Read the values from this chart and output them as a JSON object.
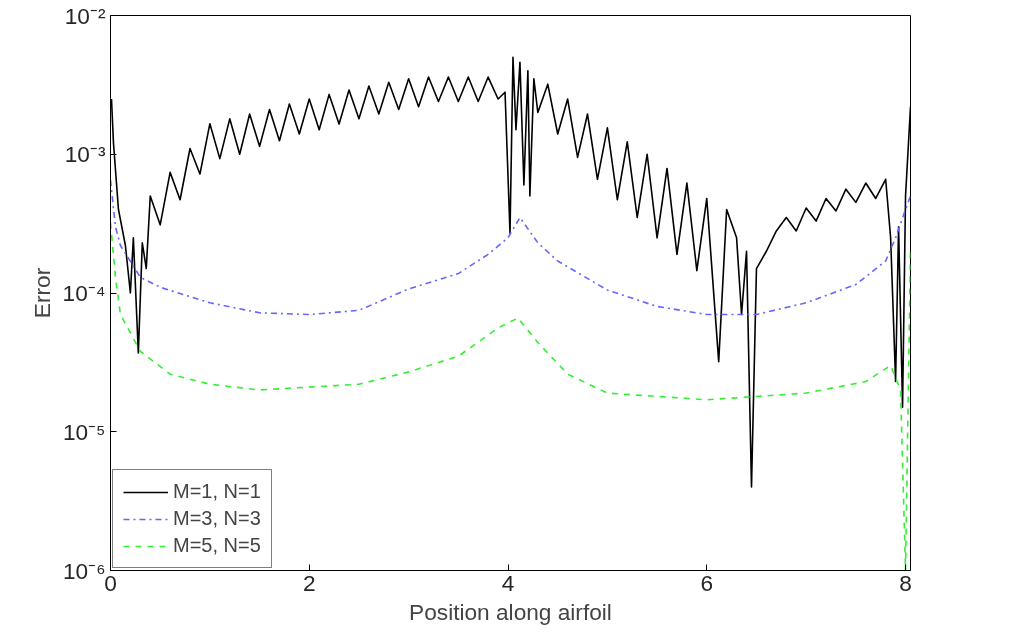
{
  "chart_data": {
    "type": "line",
    "xlabel": "Position along airfoil",
    "ylabel": "Error",
    "log": "y",
    "grid": false,
    "legend": "bottom left",
    "xlim": [
      0,
      8.05
    ],
    "ylim": [
      1e-06,
      0.01
    ],
    "xticks": [
      0,
      2,
      4,
      6,
      8
    ],
    "yticks": [
      {
        "value": 1e-06,
        "label": "10⁻⁶"
      },
      {
        "value": 1e-05,
        "label": "10⁻⁵"
      },
      {
        "value": 0.0001,
        "label": "10⁻⁴"
      },
      {
        "value": 0.001,
        "label": "10⁻³"
      },
      {
        "value": 0.01,
        "label": "10⁻²"
      }
    ],
    "series": [
      {
        "name": "M=1, N=1",
        "color": "#000000",
        "line_style": "solid",
        "x": [
          0.01,
          0.03,
          0.08,
          0.15,
          0.2,
          0.23,
          0.28,
          0.32,
          0.36,
          0.4,
          0.5,
          0.6,
          0.7,
          0.8,
          0.9,
          1.0,
          1.1,
          1.2,
          1.3,
          1.4,
          1.5,
          1.6,
          1.7,
          1.8,
          1.9,
          2.0,
          2.1,
          2.2,
          2.3,
          2.4,
          2.5,
          2.6,
          2.7,
          2.8,
          2.9,
          3.0,
          3.1,
          3.2,
          3.3,
          3.4,
          3.5,
          3.6,
          3.7,
          3.8,
          3.9,
          3.97,
          4.02,
          4.05,
          4.08,
          4.12,
          4.16,
          4.2,
          4.22,
          4.26,
          4.3,
          4.4,
          4.5,
          4.6,
          4.7,
          4.8,
          4.9,
          5.0,
          5.1,
          5.2,
          5.3,
          5.4,
          5.5,
          5.6,
          5.7,
          5.8,
          5.9,
          6.0,
          6.12,
          6.2,
          6.3,
          6.35,
          6.4,
          6.45,
          6.5,
          6.6,
          6.7,
          6.8,
          6.9,
          7.0,
          7.1,
          7.2,
          7.3,
          7.4,
          7.5,
          7.6,
          7.7,
          7.8,
          7.85,
          7.9,
          7.93,
          7.97,
          8.0,
          8.05
        ],
        "values": [
          0.0025,
          0.0012,
          0.0004,
          0.00022,
          0.0001,
          0.00025,
          3.7e-05,
          0.00023,
          0.00015,
          0.0005,
          0.00031,
          0.00074,
          0.00047,
          0.0011,
          0.00072,
          0.00166,
          0.00093,
          0.0018,
          0.001,
          0.00195,
          0.00114,
          0.0021,
          0.00125,
          0.0023,
          0.0014,
          0.0025,
          0.0015,
          0.0027,
          0.00165,
          0.0029,
          0.0018,
          0.0031,
          0.00195,
          0.0033,
          0.0021,
          0.0035,
          0.0022,
          0.0036,
          0.0024,
          0.0036,
          0.0024,
          0.0036,
          0.0024,
          0.0036,
          0.0025,
          0.0028,
          0.00027,
          0.005,
          0.0015,
          0.0046,
          0.0006,
          0.004,
          0.0005,
          0.0035,
          0.002,
          0.0032,
          0.0014,
          0.0025,
          0.00095,
          0.00195,
          0.00066,
          0.00155,
          0.00047,
          0.00123,
          0.00035,
          0.001,
          0.00025,
          0.00079,
          0.00019,
          0.00062,
          0.000145,
          0.00048,
          3.2e-05,
          0.0004,
          0.00025,
          7e-05,
          0.0002,
          4e-06,
          0.00015,
          0.0002,
          0.00028,
          0.00035,
          0.00028,
          0.00041,
          0.00033,
          0.00048,
          0.00039,
          0.00056,
          0.00045,
          0.00062,
          0.00048,
          0.00066,
          0.00025,
          2.3e-05,
          0.0003,
          1.5e-05,
          0.0005,
          0.0022
        ]
      },
      {
        "name": "M=3, N=3",
        "color": "#6666ff",
        "line_style": "dashdot",
        "x": [
          0.0,
          0.05,
          0.1,
          0.3,
          0.5,
          1.0,
          1.5,
          2.0,
          2.5,
          3.0,
          3.5,
          3.8,
          4.0,
          4.12,
          4.3,
          4.5,
          5.0,
          5.5,
          6.0,
          6.5,
          7.0,
          7.5,
          7.8,
          7.9,
          8.0,
          8.05
        ],
        "values": [
          0.00065,
          0.0003,
          0.00022,
          0.00013,
          0.00011,
          8.5e-05,
          7.2e-05,
          7e-05,
          7.5e-05,
          0.000107,
          0.000138,
          0.00019,
          0.00025,
          0.00035,
          0.00023,
          0.00017,
          0.000105,
          8e-05,
          7e-05,
          7e-05,
          8.5e-05,
          0.000115,
          0.00017,
          0.00025,
          0.0004,
          0.0005
        ]
      },
      {
        "name": "M=5, N=5",
        "color": "#33ee33",
        "line_style": "dashed",
        "x": [
          0.0,
          0.05,
          0.1,
          0.3,
          0.6,
          1.0,
          1.5,
          2.5,
          3.0,
          3.5,
          3.9,
          4.1,
          4.3,
          4.6,
          5.0,
          6.0,
          7.0,
          7.6,
          7.85,
          7.95,
          8.0,
          8.05
        ],
        "values": [
          0.00032,
          0.00013,
          7e-05,
          3.8e-05,
          2.6e-05,
          2.2e-05,
          2e-05,
          2.2e-05,
          2.7e-05,
          3.5e-05,
          5.6e-05,
          6.6e-05,
          4.4e-05,
          2.6e-05,
          1.9e-05,
          1.7e-05,
          1.9e-05,
          2.3e-05,
          3e-05,
          2e-05,
          1e-06,
          0.00021
        ]
      }
    ]
  }
}
